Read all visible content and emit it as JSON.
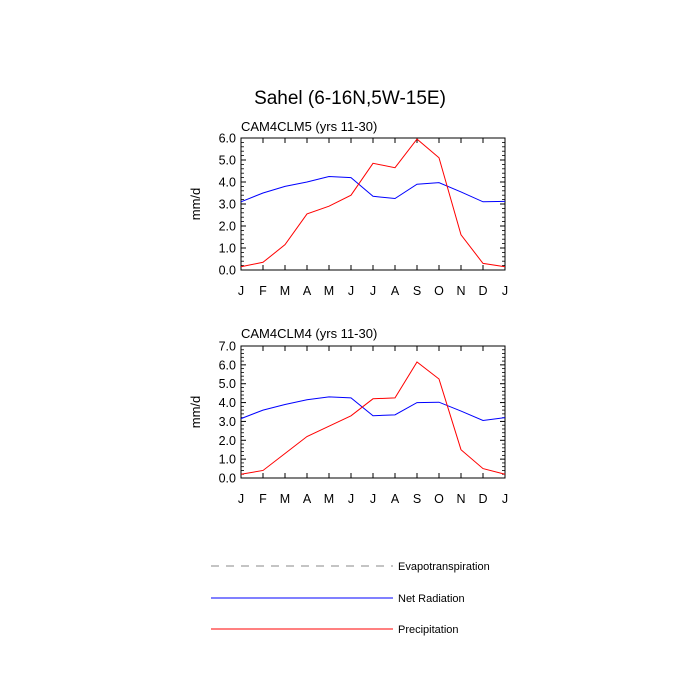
{
  "title": "Sahel (6-16N,5W-15E)",
  "chart_data": [
    {
      "type": "line",
      "subtitle": "CAM4CLM5 (yrs 11-30)",
      "ylabel": "mm/d",
      "xlabel": "",
      "categories": [
        "J",
        "F",
        "M",
        "A",
        "M",
        "J",
        "J",
        "A",
        "S",
        "O",
        "N",
        "D",
        "J"
      ],
      "ylim": [
        0,
        6
      ],
      "yticks": [
        0,
        1,
        2,
        3,
        4,
        5,
        6
      ],
      "ytick_labels": [
        "0.0",
        "1.0",
        "2.0",
        "3.0",
        "4.0",
        "5.0",
        "6.0"
      ],
      "series": [
        {
          "name": "Net Radiation",
          "color": "#0000ff",
          "values": [
            3.1,
            3.5,
            3.8,
            4.0,
            4.25,
            4.2,
            3.35,
            3.25,
            3.9,
            3.97,
            3.55,
            3.1,
            3.12
          ]
        },
        {
          "name": "Precipitation",
          "color": "#ff0000",
          "values": [
            0.15,
            0.35,
            1.15,
            2.55,
            2.9,
            3.4,
            4.85,
            4.65,
            5.95,
            5.1,
            1.6,
            0.3,
            0.15
          ]
        }
      ]
    },
    {
      "type": "line",
      "subtitle": "CAM4CLM4 (yrs 11-30)",
      "ylabel": "mm/d",
      "xlabel": "",
      "categories": [
        "J",
        "F",
        "M",
        "A",
        "M",
        "J",
        "J",
        "A",
        "S",
        "O",
        "N",
        "D",
        "J"
      ],
      "ylim": [
        0,
        7
      ],
      "yticks": [
        0,
        1,
        2,
        3,
        4,
        5,
        6,
        7
      ],
      "ytick_labels": [
        "0.0",
        "1.0",
        "2.0",
        "3.0",
        "4.0",
        "5.0",
        "6.0",
        "7.0"
      ],
      "series": [
        {
          "name": "Net Radiation",
          "color": "#0000ff",
          "values": [
            3.15,
            3.6,
            3.9,
            4.15,
            4.3,
            4.25,
            3.3,
            3.35,
            4.0,
            4.02,
            3.55,
            3.05,
            3.2
          ]
        },
        {
          "name": "Precipitation",
          "color": "#ff0000",
          "values": [
            0.2,
            0.4,
            1.3,
            2.2,
            2.75,
            3.3,
            4.2,
            4.25,
            6.15,
            5.25,
            1.5,
            0.5,
            0.2
          ]
        }
      ]
    }
  ],
  "legend": [
    {
      "label": "Evapotranspiration",
      "color": "#888888",
      "dash": "8 7"
    },
    {
      "label": "Net Radiation",
      "color": "#0000ff",
      "dash": ""
    },
    {
      "label": "Precipitation",
      "color": "#ff0000",
      "dash": ""
    }
  ]
}
